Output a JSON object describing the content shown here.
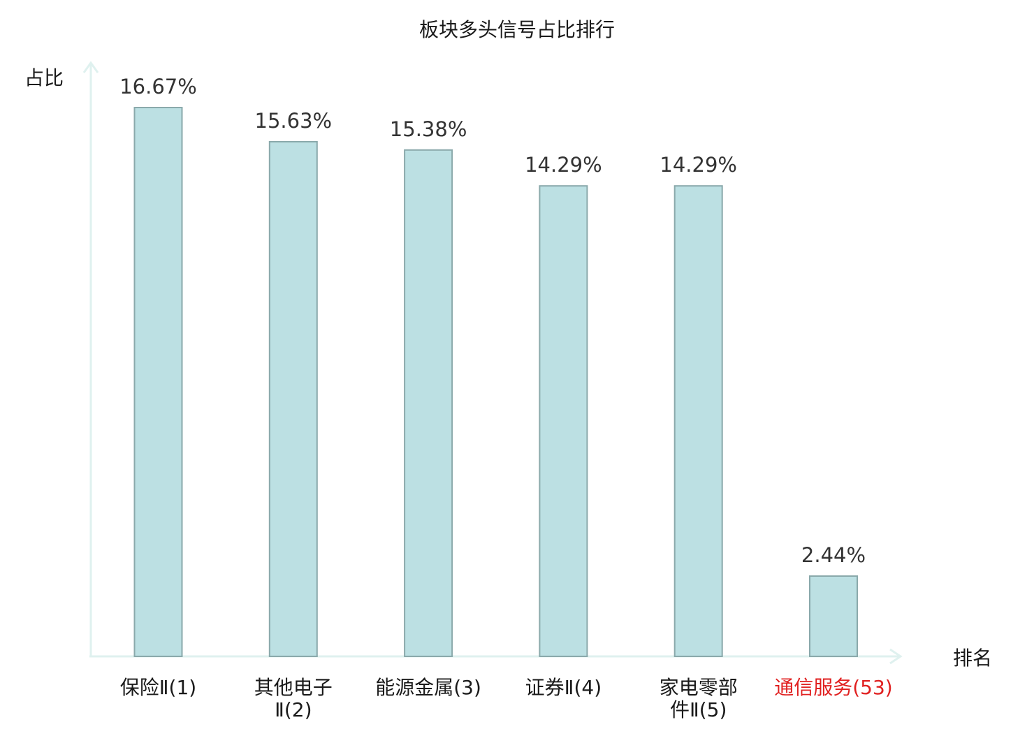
{
  "chart_data": {
    "type": "bar",
    "title": "板块多头信号占比排行",
    "ylabel": "占比",
    "xlabel": "排名",
    "categories": [
      {
        "lines": [
          "保险Ⅱ(1)"
        ],
        "highlight": false
      },
      {
        "lines": [
          "其他电子",
          "Ⅱ(2)"
        ],
        "highlight": false
      },
      {
        "lines": [
          "能源金属(3)"
        ],
        "highlight": false
      },
      {
        "lines": [
          "证券Ⅱ(4)"
        ],
        "highlight": false
      },
      {
        "lines": [
          "家电零部",
          "件Ⅱ(5)"
        ],
        "highlight": false
      },
      {
        "lines": [
          "通信服务(53)"
        ],
        "highlight": true
      }
    ],
    "values": [
      16.67,
      15.63,
      15.38,
      14.29,
      14.29,
      2.44
    ],
    "value_labels": [
      "16.67%",
      "15.63%",
      "15.38%",
      "14.29%",
      "14.29%",
      "2.44%"
    ],
    "unit": "%",
    "ylim": [
      0,
      16.67
    ],
    "grid": false,
    "colors": {
      "bar_fill": "#bce0e3",
      "bar_stroke": "#8aa9ab",
      "axis": "#dff1ef",
      "text": "#1a1a1a",
      "value_text": "#333333",
      "highlight_text": "#e02020"
    }
  }
}
